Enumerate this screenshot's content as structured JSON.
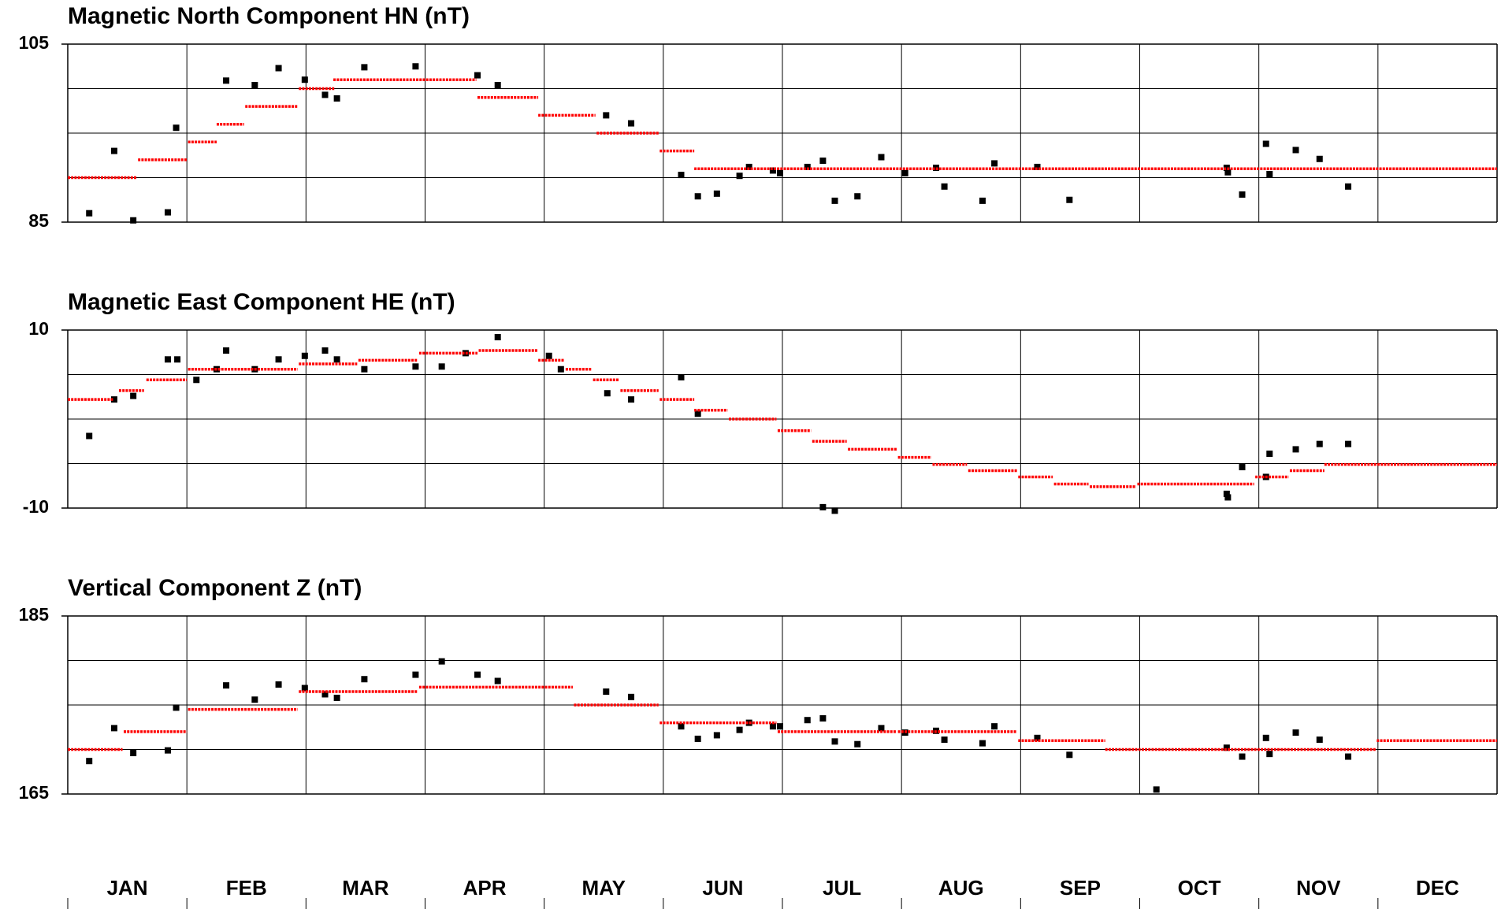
{
  "chart_data": [
    {
      "type": "scatter",
      "title": "Magnetic North Component HN (nT)",
      "xlim": [
        0,
        12
      ],
      "ylim": [
        85,
        105
      ],
      "yticks": [
        85,
        105
      ],
      "ygrid": [
        90,
        95,
        100
      ],
      "series": [
        {
          "color": "#000000",
          "x": [
            0.18,
            0.39,
            0.55,
            0.84,
            0.91,
            1.33,
            1.57,
            1.77,
            1.99,
            2.16,
            2.26,
            2.49,
            2.92,
            3.44,
            3.61,
            4.52,
            4.73,
            5.15,
            5.29,
            5.45,
            5.64,
            5.72,
            5.92,
            5.98,
            6.21,
            6.34,
            6.44,
            6.63,
            6.83,
            7.03,
            7.29,
            7.36,
            7.68,
            7.78,
            8.14,
            8.41,
            9.73,
            9.74,
            9.86,
            10.06,
            10.09,
            10.31,
            10.51,
            10.75
          ],
          "values": [
            86.0,
            93.0,
            85.2,
            86.1,
            95.6,
            100.9,
            100.4,
            102.3,
            101.0,
            99.3,
            98.9,
            102.4,
            102.5,
            101.5,
            100.4,
            97.0,
            96.1,
            90.3,
            87.9,
            88.2,
            90.2,
            91.2,
            90.8,
            90.5,
            91.2,
            91.9,
            87.4,
            87.9,
            92.3,
            90.5,
            91.1,
            89.0,
            87.4,
            91.6,
            91.2,
            87.5,
            91.1,
            90.6,
            88.1,
            93.8,
            90.4,
            93.1,
            92.1,
            89.0
          ]
        }
      ],
      "steps": {
        "color": "#ff0000",
        "starts": [
          0,
          0.59,
          1.01,
          1.25,
          1.49,
          1.94,
          2.23,
          3.44,
          3.95,
          4.44,
          4.97,
          5.26
        ],
        "ends": [
          0.58,
          1.0,
          1.25,
          1.48,
          1.93,
          2.24,
          3.43,
          3.95,
          4.43,
          4.96,
          5.26,
          12
        ],
        "values": [
          90,
          92,
          94,
          96,
          98,
          100,
          101,
          99,
          97,
          95,
          93,
          91
        ]
      }
    },
    {
      "type": "scatter",
      "title": "Magnetic East Component HE (nT)",
      "xlim": [
        0,
        12
      ],
      "ylim": [
        -10,
        10
      ],
      "yticks": [
        -10,
        10
      ],
      "ygrid": [
        -5,
        0,
        5
      ],
      "series": [
        {
          "color": "#000000",
          "x": [
            0.18,
            0.39,
            0.55,
            0.84,
            0.92,
            1.08,
            1.25,
            1.33,
            1.57,
            1.77,
            1.99,
            2.16,
            2.26,
            2.49,
            2.92,
            3.14,
            3.34,
            3.61,
            4.04,
            4.14,
            4.53,
            4.73,
            5.15,
            5.29,
            6.34,
            6.44,
            9.73,
            9.74,
            9.86,
            10.06,
            10.09,
            10.31,
            10.51,
            10.75
          ],
          "values": [
            -1.9,
            2.2,
            2.6,
            6.7,
            6.7,
            4.4,
            5.6,
            7.7,
            5.6,
            6.7,
            7.1,
            7.7,
            6.7,
            5.6,
            5.9,
            5.9,
            7.4,
            9.2,
            7.1,
            5.6,
            2.9,
            2.2,
            4.7,
            0.6,
            -9.9,
            -10.3,
            -8.4,
            -8.8,
            -5.4,
            -6.5,
            -3.9,
            -3.4,
            -2.8,
            -2.8
          ]
        }
      ],
      "steps": {
        "color": "#ff0000",
        "starts": [
          0,
          0.43,
          0.66,
          1.01,
          1.94,
          2.44,
          2.95,
          3.45,
          3.95,
          4.18,
          4.41,
          4.64,
          4.97,
          5.26,
          5.55,
          5.96,
          6.25,
          6.55,
          6.97,
          7.26,
          7.56,
          7.98,
          8.28,
          8.58,
          8.98,
          9.97,
          10.26,
          10.55
        ],
        "ends": [
          0.38,
          0.64,
          1.0,
          1.93,
          2.43,
          2.94,
          3.44,
          3.95,
          4.17,
          4.4,
          4.63,
          4.96,
          5.26,
          5.54,
          5.95,
          6.24,
          6.54,
          6.96,
          7.25,
          7.55,
          7.97,
          8.27,
          8.57,
          8.97,
          9.96,
          10.25,
          10.55,
          12
        ],
        "values": [
          2.2,
          3.2,
          4.4,
          5.6,
          6.2,
          6.6,
          7.4,
          7.7,
          6.6,
          5.6,
          4.4,
          3.2,
          2.2,
          1.0,
          0.0,
          -1.3,
          -2.5,
          -3.4,
          -4.3,
          -5.1,
          -5.8,
          -6.5,
          -7.3,
          -7.6,
          -7.3,
          -6.5,
          -5.8,
          -5.1
        ]
      }
    },
    {
      "type": "scatter",
      "title": "Vertical Component Z (nT)",
      "xlim": [
        0,
        12
      ],
      "ylim": [
        165,
        185
      ],
      "yticks": [
        165,
        185
      ],
      "ygrid": [
        170,
        175,
        180
      ],
      "categories": [
        "JAN",
        "FEB",
        "MAR",
        "APR",
        "MAY",
        "JUN",
        "JUL",
        "AUG",
        "SEP",
        "OCT",
        "NOV",
        "DEC"
      ],
      "series": [
        {
          "color": "#000000",
          "x": [
            0.18,
            0.39,
            0.55,
            0.84,
            0.91,
            1.33,
            1.57,
            1.77,
            1.99,
            2.16,
            2.26,
            2.49,
            2.92,
            3.14,
            3.44,
            3.61,
            4.52,
            4.73,
            5.15,
            5.29,
            5.45,
            5.64,
            5.72,
            5.92,
            5.98,
            6.21,
            6.34,
            6.44,
            6.63,
            6.83,
            7.03,
            7.29,
            7.36,
            7.68,
            7.78,
            8.14,
            8.41,
            9.14,
            9.73,
            9.86,
            10.06,
            10.09,
            10.31,
            10.51,
            10.75
          ],
          "values": [
            168.7,
            172.4,
            169.6,
            169.9,
            174.7,
            177.2,
            175.6,
            177.3,
            176.9,
            176.2,
            175.8,
            177.9,
            178.4,
            179.9,
            178.4,
            177.7,
            176.5,
            175.9,
            172.6,
            171.2,
            171.6,
            172.2,
            173.0,
            172.6,
            172.6,
            173.3,
            173.5,
            170.9,
            170.6,
            172.4,
            171.9,
            172.1,
            171.1,
            170.7,
            172.6,
            171.3,
            169.4,
            165.5,
            170.2,
            169.2,
            171.3,
            169.5,
            171.9,
            171.1,
            169.2
          ]
        }
      ],
      "steps": {
        "color": "#ff0000",
        "starts": [
          0,
          0.47,
          1.01,
          1.94,
          2.95,
          4.25,
          4.97,
          5.96,
          6.97,
          7.98,
          8.71,
          10.99
        ],
        "ends": [
          0.46,
          1.0,
          1.93,
          2.94,
          4.24,
          4.96,
          5.95,
          6.96,
          7.97,
          8.71,
          10.98,
          12
        ],
        "values": [
          170,
          172,
          174.5,
          176.5,
          177,
          175,
          173,
          172,
          172,
          171,
          170,
          171
        ]
      }
    }
  ]
}
